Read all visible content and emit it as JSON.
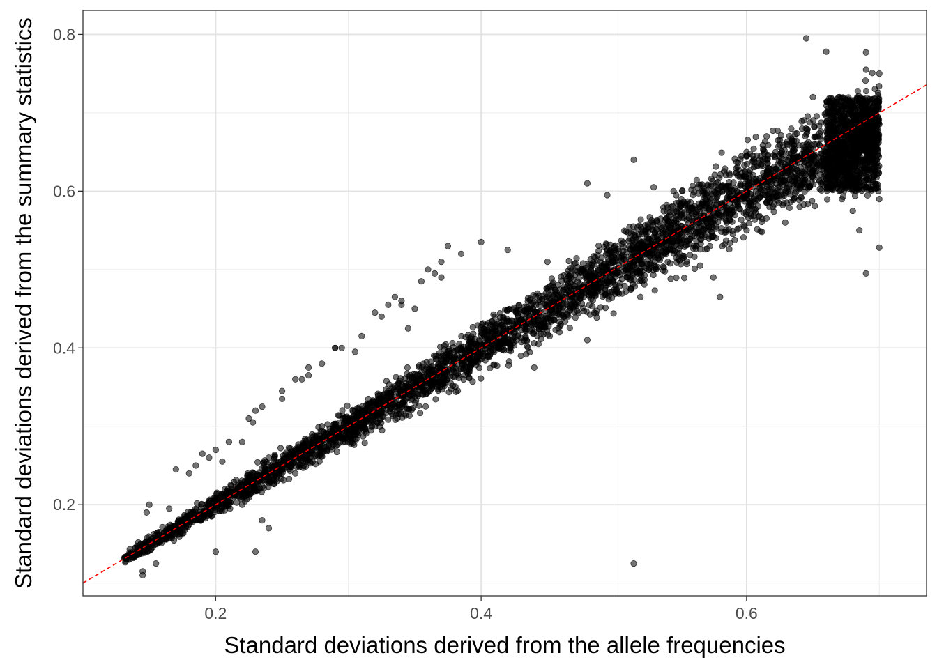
{
  "chart_data": {
    "type": "scatter",
    "title": "",
    "xlabel": "Standard deviations derived from the allele frequencies",
    "ylabel": "Standard deviations derived from the summary statistics",
    "xlim": [
      0.1,
      0.7356
    ],
    "ylim": [
      0.0837,
      0.8306
    ],
    "x_ticks": [
      0.2,
      0.4,
      0.6
    ],
    "x_tick_labels": [
      "0.2",
      "0.4",
      "0.6"
    ],
    "y_ticks": [
      0.2,
      0.4,
      0.6,
      0.8
    ],
    "y_tick_labels": [
      "0.2",
      "0.4",
      "0.6",
      "0.8"
    ],
    "grid": true,
    "legend": "none",
    "point_color": "#000000",
    "point_alpha": 0.55,
    "reference_line": {
      "type": "identity",
      "x": [
        0.1,
        0.7356
      ],
      "y": [
        0.1,
        0.7356
      ],
      "color": "#ff0000",
      "style": "dashed"
    },
    "dense_band": {
      "x_range": [
        0.131,
        0.7
      ],
      "y_equals_x": true,
      "spread_at_0.15": 0.01,
      "spread_at_0.7": 0.06
    },
    "points": [
      [
        0.135,
        0.13
      ],
      [
        0.14,
        0.135
      ],
      [
        0.143,
        0.14
      ],
      [
        0.146,
        0.145
      ],
      [
        0.15,
        0.15
      ],
      [
        0.145,
        0.115
      ],
      [
        0.145,
        0.11
      ],
      [
        0.155,
        0.125
      ],
      [
        0.148,
        0.19
      ],
      [
        0.15,
        0.2
      ],
      [
        0.165,
        0.195
      ],
      [
        0.17,
        0.245
      ],
      [
        0.18,
        0.24
      ],
      [
        0.185,
        0.25
      ],
      [
        0.19,
        0.265
      ],
      [
        0.195,
        0.26
      ],
      [
        0.2,
        0.27
      ],
      [
        0.205,
        0.255
      ],
      [
        0.2,
        0.14
      ],
      [
        0.21,
        0.28
      ],
      [
        0.22,
        0.28
      ],
      [
        0.225,
        0.31
      ],
      [
        0.228,
        0.305
      ],
      [
        0.23,
        0.32
      ],
      [
        0.235,
        0.325
      ],
      [
        0.23,
        0.14
      ],
      [
        0.225,
        0.235
      ],
      [
        0.235,
        0.18
      ],
      [
        0.24,
        0.17
      ],
      [
        0.25,
        0.345
      ],
      [
        0.25,
        0.335
      ],
      [
        0.26,
        0.36
      ],
      [
        0.265,
        0.36
      ],
      [
        0.27,
        0.375
      ],
      [
        0.27,
        0.365
      ],
      [
        0.28,
        0.38
      ],
      [
        0.29,
        0.4
      ],
      [
        0.29,
        0.4
      ],
      [
        0.295,
        0.4
      ],
      [
        0.305,
        0.395
      ],
      [
        0.31,
        0.415
      ],
      [
        0.32,
        0.445
      ],
      [
        0.325,
        0.44
      ],
      [
        0.33,
        0.455
      ],
      [
        0.335,
        0.465
      ],
      [
        0.34,
        0.46
      ],
      [
        0.34,
        0.455
      ],
      [
        0.345,
        0.425
      ],
      [
        0.35,
        0.45
      ],
      [
        0.355,
        0.485
      ],
      [
        0.36,
        0.5
      ],
      [
        0.365,
        0.495
      ],
      [
        0.37,
        0.49
      ],
      [
        0.37,
        0.51
      ],
      [
        0.375,
        0.53
      ],
      [
        0.385,
        0.52
      ],
      [
        0.4,
        0.535
      ],
      [
        0.42,
        0.525
      ],
      [
        0.41,
        0.44
      ],
      [
        0.45,
        0.51
      ],
      [
        0.48,
        0.61
      ],
      [
        0.495,
        0.595
      ],
      [
        0.515,
        0.64
      ],
      [
        0.53,
        0.605
      ],
      [
        0.545,
        0.6
      ],
      [
        0.57,
        0.59
      ],
      [
        0.565,
        0.505
      ],
      [
        0.575,
        0.49
      ],
      [
        0.58,
        0.465
      ],
      [
        0.515,
        0.125
      ],
      [
        0.645,
        0.795
      ],
      [
        0.66,
        0.778
      ],
      [
        0.69,
        0.777
      ],
      [
        0.7,
        0.75
      ],
      [
        0.69,
        0.755
      ],
      [
        0.685,
        0.55
      ],
      [
        0.69,
        0.495
      ],
      [
        0.7,
        0.528
      ],
      [
        0.68,
        0.575
      ],
      [
        0.7,
        0.59
      ],
      [
        0.48,
        0.41
      ],
      [
        0.44,
        0.375
      ],
      [
        0.43,
        0.39
      ],
      [
        0.46,
        0.43
      ],
      [
        0.51,
        0.49
      ],
      [
        0.52,
        0.465
      ],
      [
        0.26,
        0.24
      ],
      [
        0.28,
        0.3
      ],
      [
        0.3,
        0.28
      ],
      [
        0.32,
        0.3
      ],
      [
        0.22,
        0.2
      ],
      [
        0.24,
        0.26
      ],
      [
        0.6,
        0.55
      ],
      [
        0.62,
        0.58
      ],
      [
        0.63,
        0.66
      ],
      [
        0.65,
        0.72
      ],
      [
        0.66,
        0.7
      ],
      [
        0.67,
        0.72
      ],
      [
        0.64,
        0.58
      ],
      [
        0.6,
        0.65
      ]
    ]
  }
}
